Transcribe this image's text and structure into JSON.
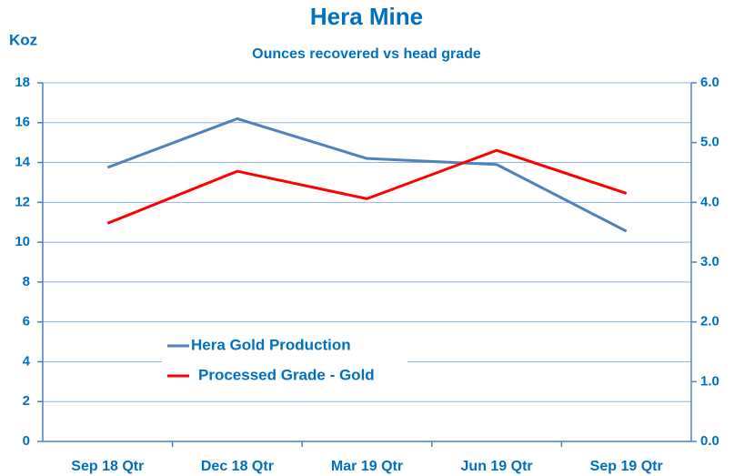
{
  "chart_data": {
    "type": "line",
    "title": "Hera Mine",
    "subtitle": "Ounces recovered vs head grade",
    "y_label": "Koz",
    "categories": [
      "Sep 18 Qtr",
      "Dec 18 Qtr",
      "Mar 19 Qtr",
      "Jun 19 Qtr",
      "Sep 19 Qtr"
    ],
    "series": [
      {
        "name": "Hera Gold Production",
        "color": "#4f81bd",
        "values": [
          13.75,
          16.2,
          14.2,
          13.9,
          10.55
        ]
      },
      {
        "name": "Processed Grade - Gold",
        "color": "#ff0000",
        "axis": "y2",
        "values": [
          3.65,
          4.52,
          4.06,
          4.87,
          4.15
        ]
      }
    ],
    "ylim": [
      0,
      18
    ],
    "yticks": [
      0,
      2,
      4,
      6,
      8,
      10,
      12,
      14,
      16,
      18
    ],
    "y2lim": [
      0,
      6
    ],
    "y2ticks": [
      {
        "value": 0,
        "label": "0.0"
      },
      {
        "value": 1,
        "label": "1.0"
      },
      {
        "value": 2,
        "label": "2.0"
      },
      {
        "value": 3,
        "label": "3.0"
      },
      {
        "value": 4,
        "label": "4.0"
      },
      {
        "value": 5,
        "label": "5.0"
      },
      {
        "value": 6,
        "label": "6.0"
      }
    ],
    "grid": true
  }
}
